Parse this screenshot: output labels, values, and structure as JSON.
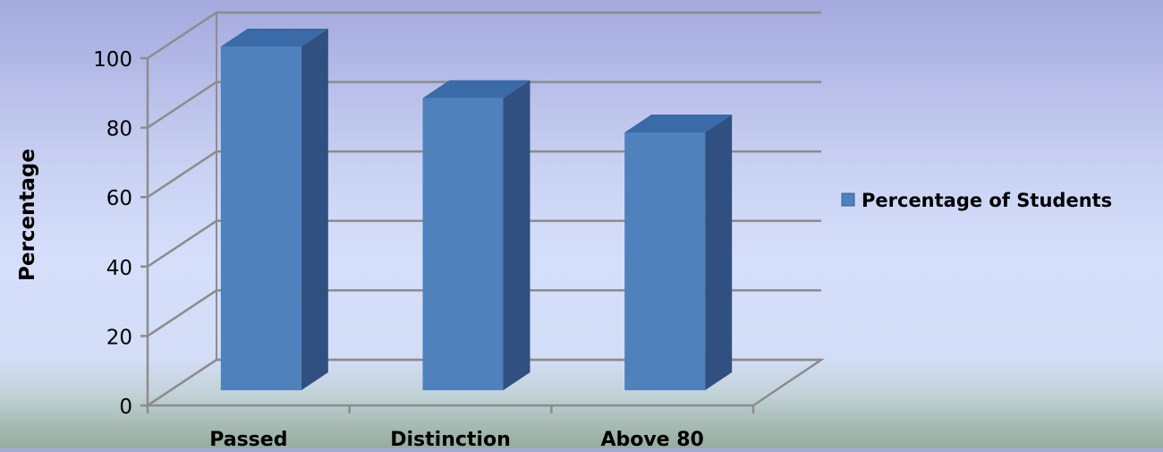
{
  "chart_data": {
    "type": "bar",
    "title": "",
    "xlabel": "",
    "ylabel": "Percentage",
    "categories": [
      "Passed",
      "Distinction",
      "Above 80"
    ],
    "series": [
      {
        "name": "Percentage of Students",
        "values": [
          100,
          85,
          75
        ],
        "color": "#4f81bd"
      }
    ],
    "ylim": [
      0,
      100
    ],
    "yticks": [
      0,
      20,
      40,
      60,
      80,
      100
    ],
    "grid": true,
    "legend_position": "right",
    "style": "3d-column"
  }
}
